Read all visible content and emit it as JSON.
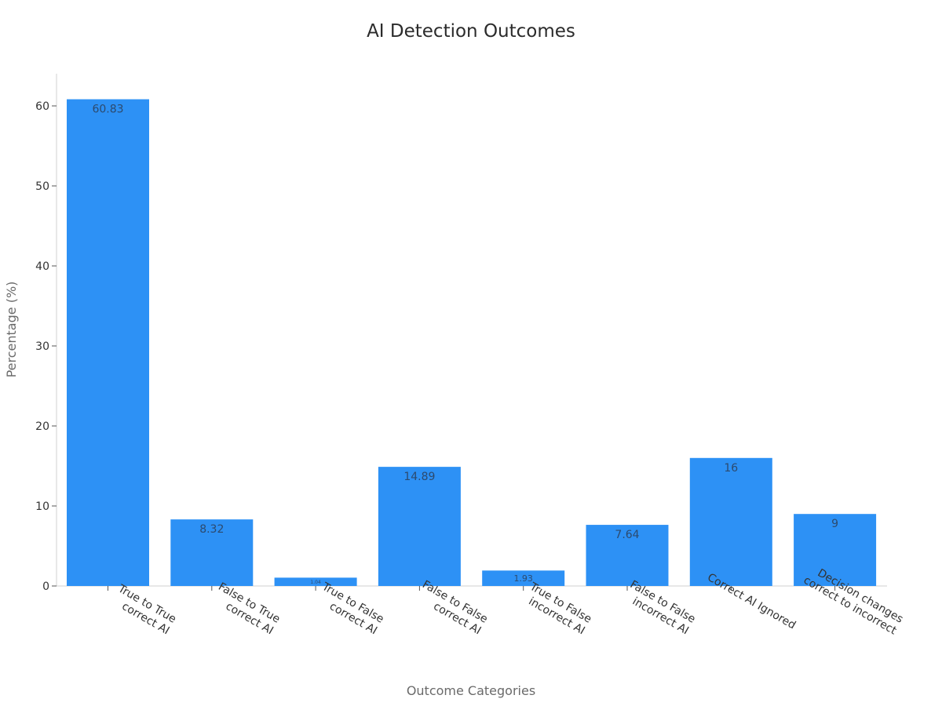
{
  "chart_data": {
    "type": "bar",
    "title": "AI Detection Outcomes",
    "xlabel": "Outcome Categories",
    "ylabel": "Percentage (%)",
    "categories": [
      "True to True correct AI",
      "False to True correct AI",
      "True to False correct AI",
      "False to False correct AI",
      "True to False incorrect AI",
      "False to False incorrect AI",
      "Correct AI Ignored",
      "Decision changes correct to incorrect"
    ],
    "category_lines": [
      [
        "True to True",
        "correct AI"
      ],
      [
        "False to True",
        "correct AI"
      ],
      [
        "True to False",
        "correct AI"
      ],
      [
        "False to False",
        "correct AI"
      ],
      [
        "True to False",
        "incorrect AI"
      ],
      [
        "False to False",
        "incorrect AI"
      ],
      [
        "Correct AI Ignored"
      ],
      [
        "Decision changes",
        "correct to incorrect"
      ]
    ],
    "values": [
      60.83,
      8.32,
      1.04,
      14.89,
      1.93,
      7.64,
      16,
      9
    ],
    "value_labels": [
      "60.83",
      "8.32",
      "1.04",
      "14.89",
      "1.93",
      "7.64",
      "16",
      "9"
    ],
    "yticks": [
      0,
      10,
      20,
      30,
      40,
      50,
      60
    ],
    "ylim": [
      0,
      64
    ],
    "grid": false,
    "legend": null,
    "bar_color": "#2d91f5"
  }
}
